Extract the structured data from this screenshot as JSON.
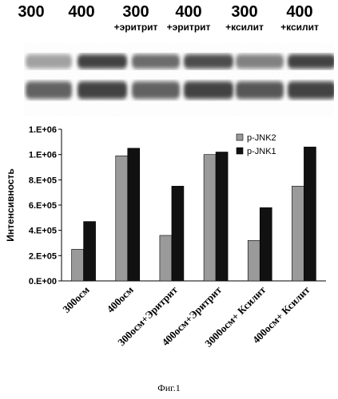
{
  "lanes": [
    {
      "num": "300",
      "sub": ""
    },
    {
      "num": "400",
      "sub": ""
    },
    {
      "num": "300",
      "sub": "+эритрит"
    },
    {
      "num": "400",
      "sub": "+эритрит"
    },
    {
      "num": "300",
      "sub": "+ксилит"
    },
    {
      "num": "400",
      "sub": "+ксилит"
    }
  ],
  "blot": {
    "rows": 2,
    "intensity_top": [
      0.45,
      0.9,
      0.7,
      0.85,
      0.6,
      0.9
    ],
    "intensity_bottom": [
      0.75,
      0.9,
      0.75,
      0.9,
      0.8,
      0.9
    ]
  },
  "chart_data": {
    "type": "bar",
    "categories": [
      "300осм",
      "400осм",
      "300осм+Эритрит",
      "400осм+Эритрит",
      "3000осм+ Ксилит",
      "400осм+ Ксилит"
    ],
    "series": [
      {
        "name": "p-JNK2",
        "values": [
          250000,
          990000,
          360000,
          1000000,
          320000,
          750000
        ],
        "color": "#9a9a9a"
      },
      {
        "name": "p-JNK1",
        "values": [
          470000,
          1050000,
          750000,
          1020000,
          580000,
          1060000
        ],
        "color": "#111111"
      }
    ],
    "ylabel": "Интенсивность",
    "ylim": [
      0,
      1200000
    ],
    "yticks": [
      "0.E+00",
      "2.E+05",
      "4.E+05",
      "6.E+05",
      "8.E+05",
      "1.E+06",
      "1.E+06"
    ],
    "legend": "top-right",
    "grid": false
  },
  "caption": "Фиг.1"
}
